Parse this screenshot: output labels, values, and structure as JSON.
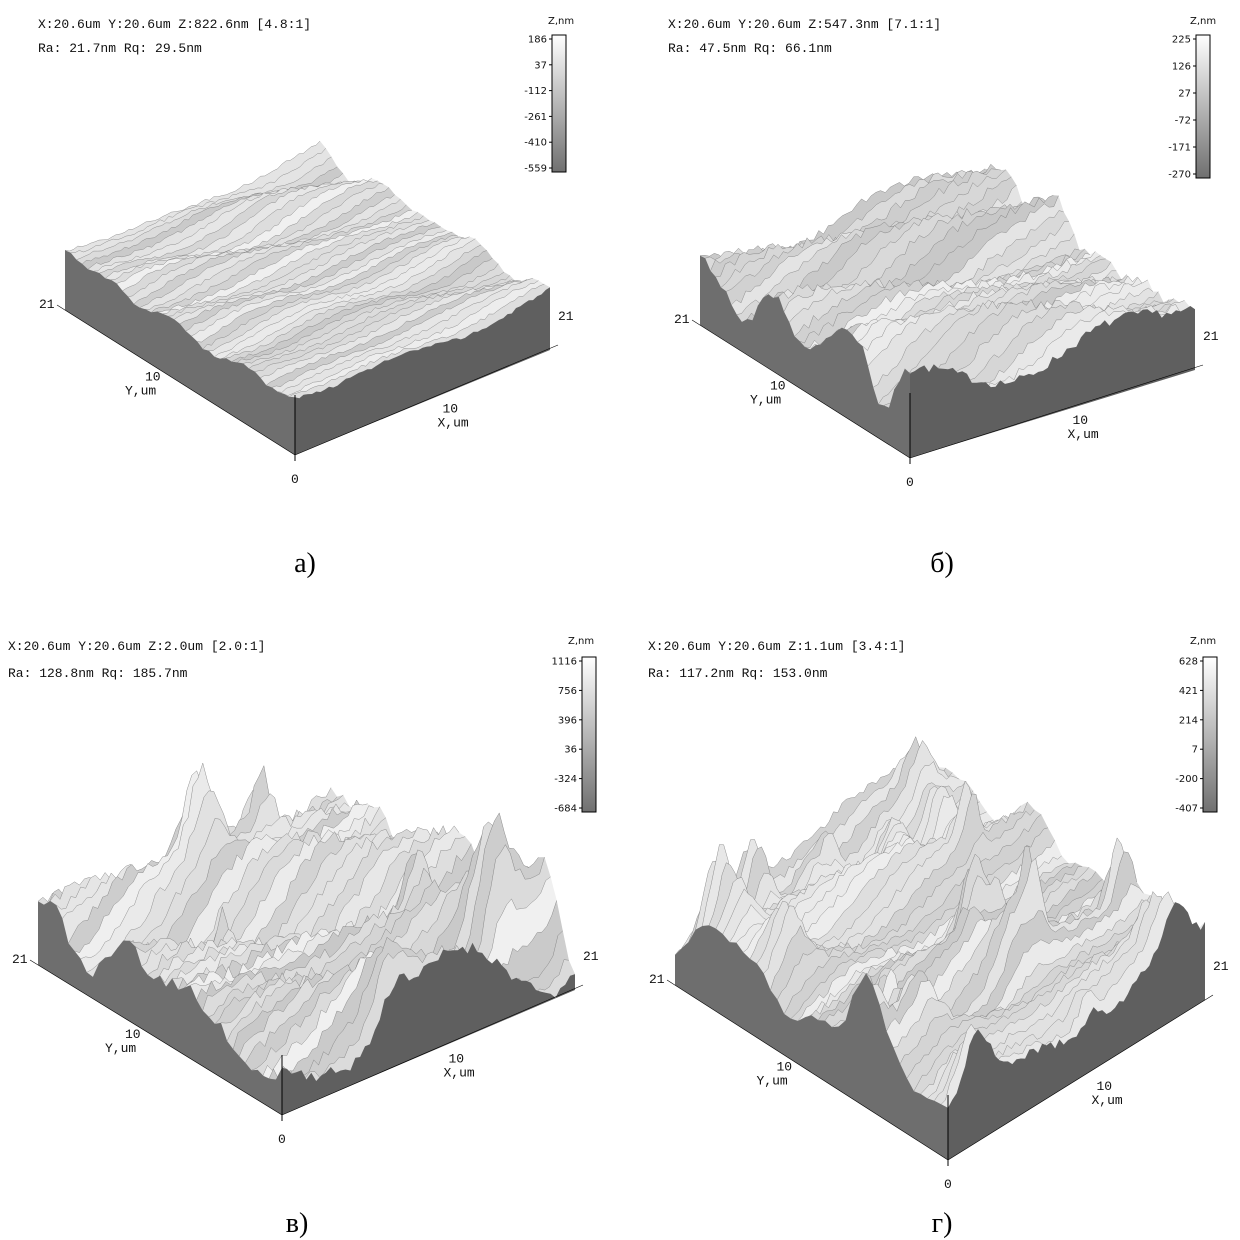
{
  "panels": [
    {
      "header_line1": "X:20.6um  Y:20.6um  Z:822.6nm [4.8:1]",
      "header_line2": "Ra: 21.7nm  Rq: 29.5nm",
      "z_label": "Z,nm",
      "z_ticks": [
        "186",
        "37",
        "-112",
        "-261",
        "-410",
        "-559"
      ],
      "y_max": "21",
      "x_max": "21",
      "y_mid": "10",
      "y_label": "Y,um",
      "x_mid": "10",
      "x_label": "X,um",
      "origin": "0",
      "caption": "а)"
    },
    {
      "header_line1": "X:20.6um  Y:20.6um  Z:547.3nm [7.1:1]",
      "header_line2": "Ra: 47.5nm  Rq: 66.1nm",
      "z_label": "Z,nm",
      "z_ticks": [
        "225",
        "126",
        "27",
        "-72",
        "-171",
        "-270"
      ],
      "y_max": "21",
      "x_max": "21",
      "y_mid": "10",
      "y_label": "Y,um",
      "x_mid": "10",
      "x_label": "X,um",
      "origin": "0",
      "caption": "б)"
    },
    {
      "header_line1": "X:20.6um  Y:20.6um  Z:2.0um [2.0:1]",
      "header_line2": "Ra: 128.8nm  Rq: 185.7nm",
      "z_label": "Z,nm",
      "z_ticks": [
        "1116",
        "756",
        "396",
        "36",
        "-324",
        "-684"
      ],
      "y_max": "21",
      "x_max": "21",
      "y_mid": "10",
      "y_label": "Y,um",
      "x_mid": "10",
      "x_label": "X,um",
      "origin": "0",
      "caption": "в)"
    },
    {
      "header_line1": "X:20.6um  Y:20.6um  Z:1.1um [3.4:1]",
      "header_line2": "Ra: 117.2nm  Rq: 153.0nm",
      "z_label": "Z,nm",
      "z_ticks": [
        "628",
        "421",
        "214",
        "7",
        "-200",
        "-407"
      ],
      "y_max": "21",
      "x_max": "21",
      "y_mid": "10",
      "y_label": "Y,um",
      "x_mid": "10",
      "x_label": "X,um",
      "origin": "0",
      "caption": "г)"
    }
  ]
}
